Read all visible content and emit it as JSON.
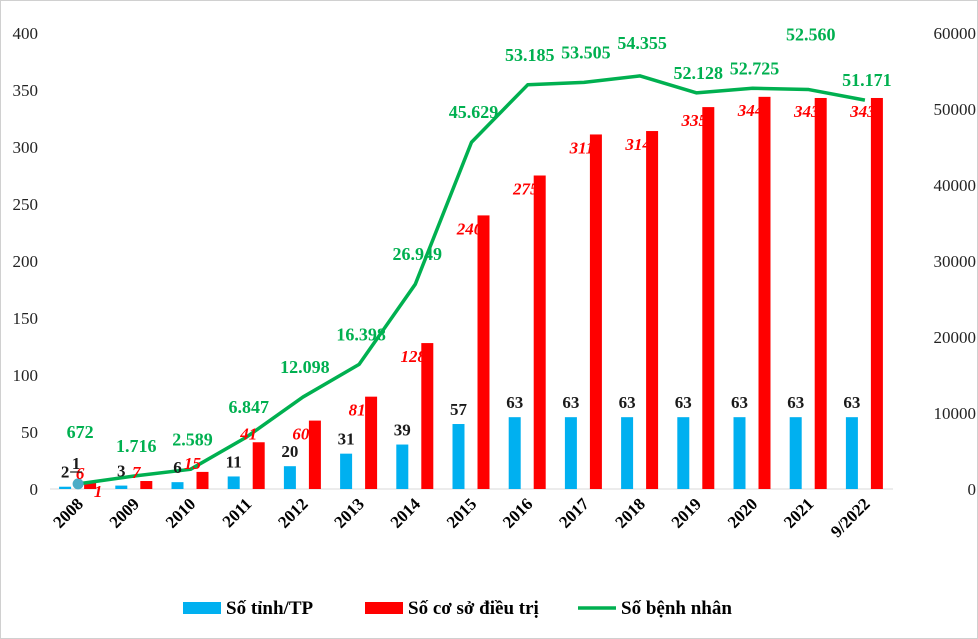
{
  "chart_data": {
    "type": "bar",
    "categories": [
      "2008",
      "2009",
      "2010",
      "2011",
      "2012",
      "2013",
      "2014",
      "2015",
      "2016",
      "2017",
      "2018",
      "2019",
      "2020",
      "2021",
      "9/2022"
    ],
    "series": [
      {
        "name": "Số tỉnh/TP",
        "kind": "bar",
        "axis": "left",
        "color": "#00b0f0",
        "values": [
          2,
          3,
          6,
          11,
          20,
          31,
          39,
          57,
          63,
          63,
          63,
          63,
          63,
          63,
          63
        ],
        "labels": [
          "2",
          "3",
          "6",
          "11",
          "20",
          "31",
          "39",
          "57",
          "63",
          "63",
          "63",
          "63",
          "63",
          "63",
          "63"
        ]
      },
      {
        "name": "Số cơ sở điều trị",
        "kind": "bar",
        "axis": "left",
        "color": "#ff0000",
        "values": [
          6,
          7,
          15,
          41,
          60,
          81,
          128,
          240,
          275,
          311,
          314,
          335,
          344,
          343,
          343
        ],
        "labels": [
          "6",
          "7",
          "15",
          "41",
          "60",
          "81",
          "128",
          "240",
          "275",
          "311",
          "314",
          "335",
          "344",
          "343",
          "343"
        ]
      },
      {
        "name": "Số bệnh nhân",
        "kind": "line",
        "axis": "right",
        "color": "#00b050",
        "values": [
          672,
          1716,
          2589,
          6847,
          12098,
          16398,
          26949,
          45629,
          53185,
          53505,
          54355,
          52128,
          52725,
          52560,
          51171
        ],
        "labels": [
          "672",
          "1.716",
          "2.589",
          "6.847",
          "12.098",
          "16.398",
          "26.949",
          "45.629",
          "53.185",
          "53.505",
          "54.355",
          "52.128",
          "52.725",
          "52.560",
          "51.171"
        ]
      }
    ],
    "extra_labels": [
      {
        "text": "1",
        "category": "2008",
        "color": "#1a1a1a",
        "style": "normal"
      },
      {
        "text": "1",
        "category": "2008",
        "color": "#ff0000",
        "style": "italic"
      }
    ],
    "y_left": {
      "min": 0,
      "max": 400,
      "ticks": [
        "0",
        "50",
        "100",
        "150",
        "200",
        "250",
        "300",
        "350",
        "400"
      ]
    },
    "y_right": {
      "min": 0,
      "max": 60000,
      "ticks": [
        "0",
        "10000",
        "20000",
        "30000",
        "40000",
        "50000",
        "60000"
      ]
    },
    "title": "",
    "xlabel": "",
    "ylabel": "",
    "grid": false,
    "legend_position": "bottom"
  }
}
